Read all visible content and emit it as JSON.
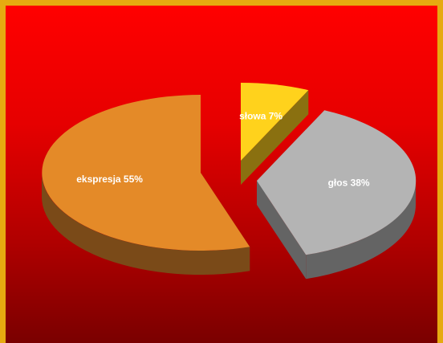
{
  "chart_data": {
    "type": "pie",
    "three_d": true,
    "exploded": true,
    "slices": [
      {
        "label": "slowa",
        "value": 7,
        "display": "słowa 7%",
        "color": "#ffd21c",
        "side_color": "#8a7010"
      },
      {
        "label": "glos",
        "value": 38,
        "display": "głos 38%",
        "color": "#b4b4b4",
        "side_color": "#646464"
      },
      {
        "label": "ekspresja",
        "value": 55,
        "display": "ekspresja 55%",
        "color": "#e48a28",
        "side_color": "#7a4a18"
      }
    ],
    "colors": {
      "background_top": "#ff0000",
      "background_bottom": "#7a0000",
      "frame": "#e6aa10"
    }
  }
}
